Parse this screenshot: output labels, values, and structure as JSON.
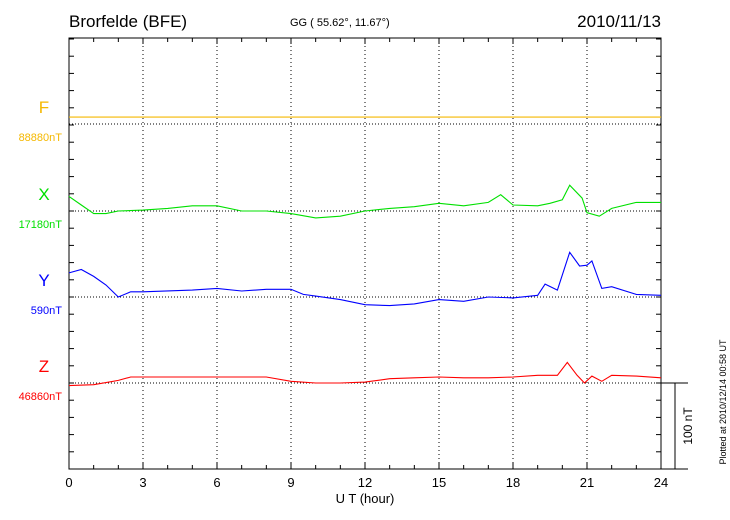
{
  "header": {
    "station": "Brorfelde (BFE)",
    "coords": "GG ( 55.62°,  11.67°)",
    "date": "2010/11/13"
  },
  "footer": {
    "plotted_at": "Plotted at 2010/12/14 00:58 UT",
    "scale_label": "100 nT"
  },
  "chart_data": {
    "type": "line",
    "title": "Brorfelde (BFE) 2010/11/13",
    "xlabel": "U T (hour)",
    "xlim": [
      0,
      24
    ],
    "xticks": [
      "0",
      "3",
      "6",
      "9",
      "12",
      "15",
      "18",
      "21",
      "24"
    ],
    "grid": true,
    "scale_nT": 100,
    "series": [
      {
        "name": "F",
        "baseline_label": "88880nT",
        "color": "#f5b800",
        "x": [
          0,
          24
        ],
        "values": [
          8,
          8
        ]
      },
      {
        "name": "X",
        "baseline_label": "17180nT",
        "color": "#00e000",
        "x": [
          0,
          0.5,
          1,
          1.5,
          2,
          3,
          4,
          5,
          6,
          7,
          8,
          9,
          10,
          11,
          12,
          13,
          14,
          15,
          16,
          17,
          17.5,
          18,
          19,
          19.5,
          20,
          20.3,
          20.8,
          21,
          21.5,
          22,
          23,
          24
        ],
        "values": [
          17,
          7,
          -3,
          -3,
          0,
          1,
          3,
          6,
          6,
          0,
          0,
          -3,
          -8,
          -6,
          0,
          3,
          5,
          9,
          6,
          10,
          19,
          7,
          6,
          9,
          13,
          30,
          15,
          -2,
          -6,
          3,
          10,
          10
        ]
      },
      {
        "name": "Y",
        "baseline_label": "590nT",
        "color": "#0000ff",
        "x": [
          0,
          0.5,
          1,
          1.5,
          2,
          2.5,
          3,
          5,
          6,
          7,
          8,
          9,
          9.5,
          10,
          11,
          12,
          13,
          14,
          15,
          16,
          17,
          18,
          19,
          19.3,
          19.8,
          20.3,
          20.7,
          21,
          21.2,
          21.6,
          22,
          23,
          24
        ],
        "values": [
          28,
          32,
          24,
          14,
          0,
          6,
          6,
          8,
          10,
          7,
          9,
          9,
          3,
          1,
          -3,
          -9,
          -10,
          -8,
          -3,
          -5,
          0,
          -1,
          2,
          15,
          8,
          52,
          36,
          37,
          42,
          10,
          12,
          3,
          2
        ]
      },
      {
        "name": "Z",
        "baseline_label": "46860nT",
        "color": "#ff0000",
        "x": [
          0,
          1,
          2,
          2.5,
          3,
          5,
          8,
          9,
          10,
          11,
          12,
          13,
          14,
          15,
          16,
          17,
          18,
          19,
          19.8,
          20.2,
          20.6,
          20.9,
          21.2,
          21.6,
          22,
          23,
          24
        ],
        "values": [
          -3,
          -2,
          3,
          7,
          7,
          7,
          7,
          2,
          0,
          0,
          1,
          5,
          6,
          7,
          6,
          6,
          7,
          9,
          9,
          24,
          9,
          0,
          8,
          2,
          9,
          8,
          6
        ]
      }
    ]
  }
}
